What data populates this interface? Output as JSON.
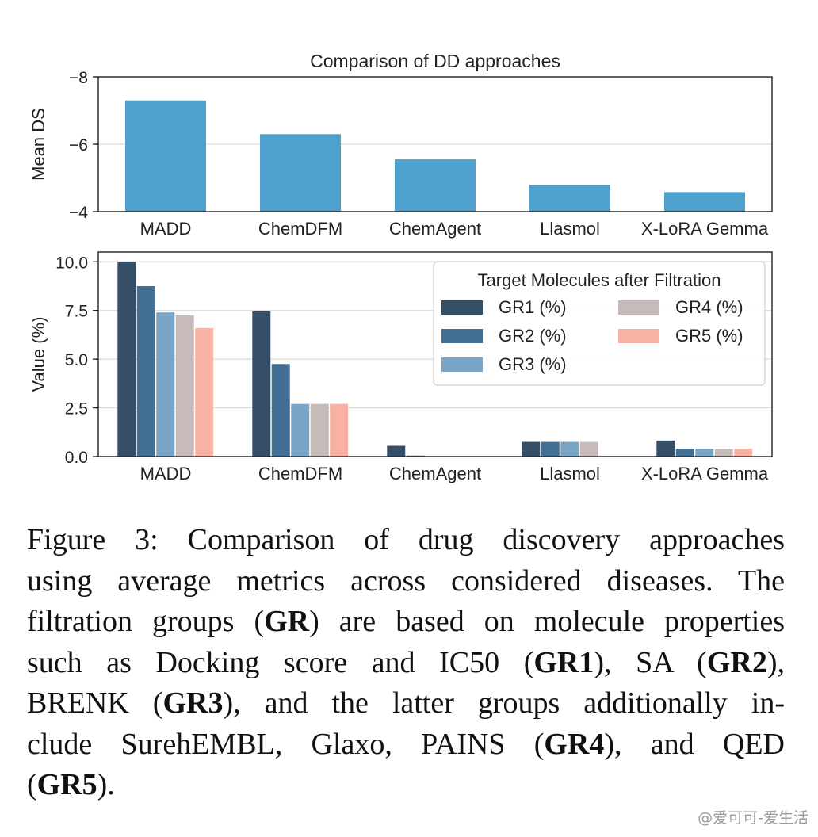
{
  "chart_data": [
    {
      "type": "bar",
      "title": "Comparison of DD approaches",
      "xlabel": "",
      "ylabel": "Mean DS",
      "categories": [
        "MADD",
        "ChemDFM",
        "ChemAgent",
        "Llasmol",
        "X-LoRA Gemma"
      ],
      "values": [
        -7.3,
        -6.3,
        -5.55,
        -4.8,
        -4.58
      ],
      "ylim": [
        -4,
        -8
      ],
      "yticks": [
        -8,
        -6,
        -4
      ],
      "ytick_labels": [
        "−8",
        "−6",
        "−4"
      ],
      "grid": true,
      "colors": {
        "bar": "#4fa1cd"
      }
    },
    {
      "type": "bar",
      "title": "",
      "xlabel": "",
      "ylabel": "Value (%)",
      "categories": [
        "MADD",
        "ChemDFM",
        "ChemAgent",
        "Llasmol",
        "X-LoRA Gemma"
      ],
      "series": [
        {
          "name": "GR1 (%)",
          "color": "#364f68",
          "values": [
            10.0,
            7.45,
            0.55,
            0.75,
            0.82
          ]
        },
        {
          "name": "GR2 (%)",
          "color": "#436f95",
          "values": [
            8.75,
            4.75,
            0.05,
            0.75,
            0.4
          ]
        },
        {
          "name": "GR3 (%)",
          "color": "#7aa5c7",
          "values": [
            7.4,
            2.7,
            0.02,
            0.75,
            0.4
          ]
        },
        {
          "name": "GR4 (%)",
          "color": "#c6bbb8",
          "values": [
            7.25,
            2.7,
            0.02,
            0.75,
            0.4
          ]
        },
        {
          "name": "GR5 (%)",
          "color": "#f8b2a4",
          "values": [
            6.6,
            2.7,
            0.02,
            0.0,
            0.4
          ]
        }
      ],
      "ylim": [
        0,
        10.5
      ],
      "yticks": [
        0,
        2.5,
        5,
        7.5,
        10
      ],
      "ytick_labels": [
        "0.0",
        "2.5",
        "5.0",
        "7.5",
        "10.0"
      ],
      "grid": true,
      "legend": {
        "title": "Target Molecules after Filtration",
        "placement": "top-right",
        "columns": 2
      }
    }
  ],
  "caption": {
    "lines": [
      [
        {
          "t": "Figure 3: Comparison of drug discovery approaches"
        }
      ],
      [
        {
          "t": "using average metrics across considered diseases. The"
        }
      ],
      [
        {
          "t": "filtration groups ("
        },
        {
          "t": "GR",
          "b": true
        },
        {
          "t": ") are based on molecule properties"
        }
      ],
      [
        {
          "t": "such as Docking score and IC50 ("
        },
        {
          "t": "GR1",
          "b": true
        },
        {
          "t": "), SA ("
        },
        {
          "t": "GR2",
          "b": true
        },
        {
          "t": "),"
        }
      ],
      [
        {
          "t": "BRENK ("
        },
        {
          "t": "GR3",
          "b": true
        },
        {
          "t": "), and the latter groups additionally in-"
        }
      ],
      [
        {
          "t": "clude SurehEMBL, Glaxo, PAINS ("
        },
        {
          "t": "GR4",
          "b": true
        },
        {
          "t": "), and QED"
        }
      ],
      [
        {
          "t": "("
        },
        {
          "t": "GR5",
          "b": true
        },
        {
          "t": ")."
        }
      ]
    ]
  },
  "watermark": "@爱可可-爱生活",
  "colors": {
    "axis": "#222222",
    "grid": "#d9d9d9",
    "text": "#222222"
  }
}
